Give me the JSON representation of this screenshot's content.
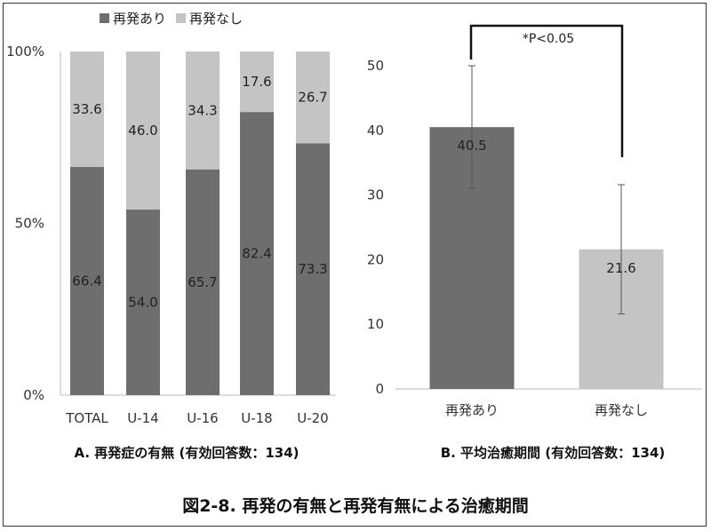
{
  "chart_data": [
    {
      "type": "bar",
      "stacked": "percent",
      "categories": [
        "TOTAL",
        "U-14",
        "U-16",
        "U-18",
        "U-20"
      ],
      "series": [
        {
          "name": "再発あり",
          "values": [
            66.4,
            54.0,
            65.7,
            82.4,
            73.3
          ],
          "color": "#6e6e6e"
        },
        {
          "name": "再発なし",
          "values": [
            33.6,
            46.0,
            34.3,
            17.6,
            26.7
          ],
          "color": "#c4c4c4"
        }
      ],
      "yticks": [
        "0%",
        "50%",
        "100%"
      ],
      "ylim": [
        0,
        100
      ],
      "legend": "top",
      "caption": "A. 再発症の有無 (有効回答数：134)"
    },
    {
      "type": "bar",
      "categories": [
        "再発あり",
        "再発なし"
      ],
      "values": [
        40.5,
        21.6
      ],
      "errors": [
        9.5,
        10.0
      ],
      "colors": [
        "#6e6e6e",
        "#c4c4c4"
      ],
      "yticks": [
        "0",
        "10",
        "20",
        "30",
        "40",
        "50"
      ],
      "ylim": [
        0,
        50
      ],
      "annotation": "*P<0.05",
      "caption": "B. 平均治癒期間 (有効回答数：134)"
    }
  ],
  "figure_title": "図2-8. 再発の有無と再発有無による治癒期間"
}
